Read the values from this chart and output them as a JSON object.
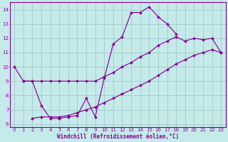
{
  "bg_color": "#c5eaea",
  "grid_color": "#9fc8c8",
  "line_color": "#880099",
  "xlabel": "Windchill (Refroidissement éolien,°C)",
  "xlim": [
    -0.5,
    23.5
  ],
  "ylim": [
    5.8,
    14.5
  ],
  "xticks": [
    0,
    1,
    2,
    3,
    4,
    5,
    6,
    7,
    8,
    9,
    10,
    11,
    12,
    13,
    14,
    15,
    16,
    17,
    18,
    19,
    20,
    21,
    22,
    23
  ],
  "yticks": [
    6,
    7,
    8,
    9,
    10,
    11,
    12,
    13,
    14
  ],
  "curve1_x": [
    0,
    1,
    2,
    3,
    4,
    5,
    6,
    7,
    8,
    9,
    10,
    11,
    12,
    13,
    14,
    15,
    16,
    17,
    18
  ],
  "curve1_y": [
    10.0,
    9.0,
    9.0,
    7.3,
    6.4,
    6.4,
    6.5,
    6.6,
    7.8,
    6.5,
    9.2,
    11.6,
    12.1,
    13.8,
    13.8,
    14.2,
    13.5,
    13.0,
    12.3
  ],
  "curve2_x": [
    1,
    2,
    3,
    4,
    5,
    6,
    7,
    8,
    9,
    10,
    11,
    12,
    13,
    14,
    15,
    16,
    17,
    18,
    19,
    20,
    21,
    22,
    23
  ],
  "curve2_y": [
    9.0,
    9.0,
    9.0,
    9.0,
    9.0,
    9.0,
    9.0,
    9.0,
    9.0,
    9.3,
    9.6,
    10.0,
    10.3,
    10.7,
    11.0,
    11.5,
    11.8,
    12.1,
    11.8,
    12.0,
    11.9,
    12.0,
    11.0
  ],
  "curve3_x": [
    2,
    3,
    4,
    5,
    6,
    7,
    8,
    9,
    10,
    11,
    12,
    13,
    14,
    15,
    16,
    17,
    18,
    19,
    20,
    21,
    22,
    23
  ],
  "curve3_y": [
    6.4,
    6.5,
    6.5,
    6.5,
    6.6,
    6.8,
    7.0,
    7.2,
    7.5,
    7.8,
    8.1,
    8.4,
    8.7,
    9.0,
    9.4,
    9.8,
    10.2,
    10.5,
    10.8,
    11.0,
    11.2,
    11.0
  ]
}
